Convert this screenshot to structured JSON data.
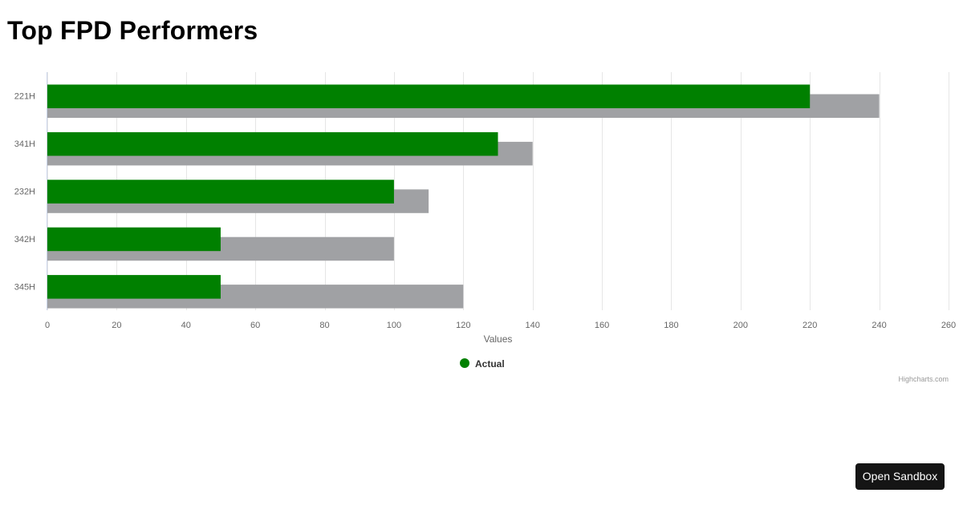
{
  "page": {
    "title": "Top FPD Performers",
    "credits": "Highcharts.com",
    "sandbox_label": "Open Sandbox"
  },
  "colors": {
    "actual": "#008000",
    "target": "#a0a1a4",
    "grid": "#e6e6e6",
    "axis_line": "#ccd6eb",
    "text": "#666666"
  },
  "chart_data": {
    "type": "bar",
    "orientation": "horizontal",
    "categories": [
      "221H",
      "341H",
      "232H",
      "342H",
      "345H"
    ],
    "series": [
      {
        "name": "Actual",
        "values": [
          220,
          130,
          100,
          50,
          50
        ],
        "color": "#008000",
        "in_legend": true
      },
      {
        "values": [
          240,
          140,
          110,
          100,
          120
        ],
        "color": "#a0a1a4",
        "in_legend": false
      }
    ],
    "xlabel": "Values",
    "xlim": [
      0,
      260
    ],
    "xticks": [
      0,
      20,
      40,
      60,
      80,
      100,
      120,
      140,
      160,
      180,
      200,
      220,
      240,
      260
    ],
    "grid": true,
    "legend": "bottom-center"
  }
}
